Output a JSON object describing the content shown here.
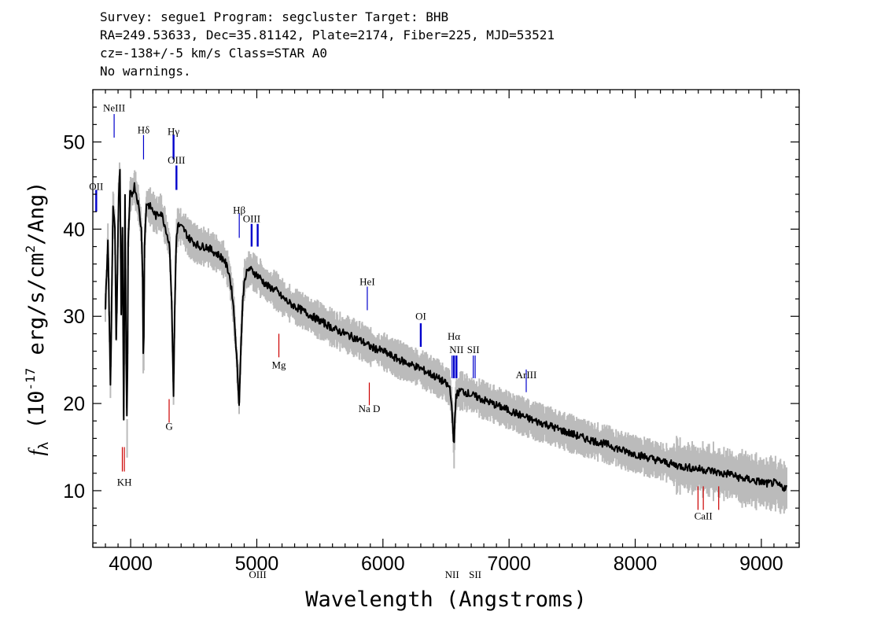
{
  "header": {
    "line1": "Survey: segue1 Program: segcluster Target: BHB",
    "line2": "RA=249.53633, Dec=35.81142, Plate=2174, Fiber=225, MJD=53521",
    "line3": "cz=-138+/-5 km/s Class=STAR A0",
    "line4": "No warnings."
  },
  "chart_data": {
    "type": "line",
    "xlabel": "Wavelength (Angstroms)",
    "ylabel": "f_λ (10^-17 erg/s/cm^2/Ang)",
    "xlim": [
      3700,
      9300
    ],
    "ylim": [
      3.5,
      56
    ],
    "xticks": [
      4000,
      5000,
      6000,
      7000,
      8000,
      9000
    ],
    "yticks": [
      10,
      20,
      30,
      40,
      50
    ],
    "grid": false,
    "colors": {
      "flux": "#000000",
      "error": "#bbbbbb",
      "emission": "#0000cc",
      "absorption": "#cc0000"
    },
    "series": [
      {
        "name": "flux",
        "points": [
          [
            3800,
            31
          ],
          [
            3820,
            39
          ],
          [
            3840,
            22
          ],
          [
            3860,
            43
          ],
          [
            3875,
            40
          ],
          [
            3885,
            27
          ],
          [
            3895,
            35
          ],
          [
            3905,
            44
          ],
          [
            3915,
            47
          ],
          [
            3925,
            30
          ],
          [
            3935,
            40
          ],
          [
            3945,
            18
          ],
          [
            3955,
            44
          ],
          [
            3965,
            24
          ],
          [
            3972,
            16
          ],
          [
            3980,
            38
          ],
          [
            3995,
            44
          ],
          [
            4010,
            44
          ],
          [
            4030,
            45
          ],
          [
            4060,
            43
          ],
          [
            4085,
            40
          ],
          [
            4095,
            35
          ],
          [
            4102,
            22
          ],
          [
            4110,
            38
          ],
          [
            4125,
            43
          ],
          [
            4160,
            42.5
          ],
          [
            4200,
            41.5
          ],
          [
            4240,
            42
          ],
          [
            4280,
            40
          ],
          [
            4310,
            38
          ],
          [
            4328,
            30
          ],
          [
            4340,
            21
          ],
          [
            4350,
            31
          ],
          [
            4362,
            39
          ],
          [
            4375,
            40.5
          ],
          [
            4420,
            40
          ],
          [
            4460,
            39
          ],
          [
            4500,
            38.5
          ],
          [
            4550,
            38
          ],
          [
            4600,
            38
          ],
          [
            4650,
            37.5
          ],
          [
            4700,
            37
          ],
          [
            4740,
            36.5
          ],
          [
            4780,
            35
          ],
          [
            4810,
            32
          ],
          [
            4830,
            28
          ],
          [
            4845,
            24
          ],
          [
            4861,
            20
          ],
          [
            4875,
            27
          ],
          [
            4890,
            32
          ],
          [
            4905,
            34.5
          ],
          [
            4940,
            35.5
          ],
          [
            4980,
            35
          ],
          [
            5020,
            34.5
          ],
          [
            5080,
            33.5
          ],
          [
            5150,
            33
          ],
          [
            5200,
            32.2
          ],
          [
            5260,
            31.5
          ],
          [
            5320,
            31
          ],
          [
            5380,
            30.5
          ],
          [
            5440,
            30
          ],
          [
            5500,
            29.5
          ],
          [
            5560,
            29
          ],
          [
            5620,
            28.5
          ],
          [
            5700,
            28
          ],
          [
            5780,
            27.5
          ],
          [
            5850,
            27
          ],
          [
            5900,
            26.5
          ],
          [
            6000,
            26
          ],
          [
            6100,
            25.2
          ],
          [
            6200,
            24.6
          ],
          [
            6300,
            24
          ],
          [
            6400,
            23.2
          ],
          [
            6480,
            22.5
          ],
          [
            6530,
            21.8
          ],
          [
            6550,
            19
          ],
          [
            6557,
            17
          ],
          [
            6563,
            14
          ],
          [
            6570,
            18
          ],
          [
            6580,
            21
          ],
          [
            6620,
            21.5
          ],
          [
            6700,
            21
          ],
          [
            6800,
            20.4
          ],
          [
            6900,
            19.8
          ],
          [
            7000,
            19.2
          ],
          [
            7100,
            18.6
          ],
          [
            7200,
            18
          ],
          [
            7300,
            17.6
          ],
          [
            7400,
            17
          ],
          [
            7500,
            16.5
          ],
          [
            7600,
            16
          ],
          [
            7700,
            15.6
          ],
          [
            7800,
            15.2
          ],
          [
            7900,
            14.6
          ],
          [
            8000,
            14.2
          ],
          [
            8100,
            13.8
          ],
          [
            8200,
            13.4
          ],
          [
            8300,
            13
          ],
          [
            8400,
            12.7
          ],
          [
            8500,
            12.5
          ],
          [
            8550,
            12.4
          ],
          [
            8600,
            12.3
          ],
          [
            8650,
            12.1
          ],
          [
            8700,
            11.9
          ],
          [
            8750,
            12
          ],
          [
            8800,
            11.6
          ],
          [
            8850,
            11.4
          ],
          [
            8900,
            11.3
          ],
          [
            8950,
            11.1
          ],
          [
            9000,
            11
          ],
          [
            9050,
            10.8
          ],
          [
            9100,
            10.9
          ],
          [
            9150,
            10.5
          ],
          [
            9200,
            10.3
          ]
        ]
      }
    ],
    "line_markers": [
      {
        "label": "OII",
        "wavelength": 3727,
        "kind": "emission",
        "label_y": 44.5,
        "from": 42,
        "to": 44.5,
        "width": 2.4
      },
      {
        "label": "NeIII",
        "wavelength": 3869,
        "kind": "emission",
        "label_y": 53.5,
        "from": 50.5,
        "to": 53.2,
        "width": 1.2
      },
      {
        "label": "Hδ",
        "wavelength": 4102,
        "kind": "emission",
        "label_y": 51,
        "from": 48,
        "to": 50.8,
        "width": 1.2
      },
      {
        "label": "Hγ",
        "wavelength": 4340,
        "kind": "emission",
        "label_y": 50.8,
        "from": 48,
        "to": 50.8,
        "width": 2.4
      },
      {
        "label": "OIII",
        "wavelength": 4363,
        "kind": "emission",
        "label_y": 47.5,
        "from": 44.5,
        "to": 47.3,
        "width": 2.4
      },
      {
        "label": "Hβ",
        "wavelength": 4861,
        "kind": "emission",
        "label_y": 41.8,
        "from": 39,
        "to": 41.8,
        "width": 1.2
      },
      {
        "label": "OIII",
        "wavelength": 4959,
        "kind": "emission",
        "label_y": 40.8,
        "from": 38,
        "to": 40.6,
        "width": 2.4
      },
      {
        "label": "OIII",
        "wavelength": 5007,
        "kind": "emission",
        "label_y": 0,
        "from": 38,
        "to": 40.6,
        "width": 2.4
      },
      {
        "label": "HeI",
        "wavelength": 5876,
        "kind": "emission",
        "label_y": 33.6,
        "from": 30.7,
        "to": 33.4,
        "width": 1.2
      },
      {
        "label": "OI",
        "wavelength": 6300,
        "kind": "emission",
        "label_y": 29.6,
        "from": 26.5,
        "to": 29.2,
        "width": 2.4
      },
      {
        "label": "NII",
        "wavelength": 6548,
        "kind": "emission",
        "label_y": 0,
        "from": 22.9,
        "to": 25.5,
        "width": 1.2
      },
      {
        "label": "Hα",
        "wavelength": 6563,
        "kind": "emission",
        "label_y": 27.3,
        "from": 22.9,
        "to": 25.5,
        "width": 2.4
      },
      {
        "label": "NII",
        "wavelength": 6583,
        "kind": "emission",
        "label_y": 25.8,
        "from": 22.9,
        "to": 25.5,
        "width": 2.4
      },
      {
        "label": "SII",
        "wavelength": 6716,
        "kind": "emission",
        "label_y": 25.8,
        "from": 22.9,
        "to": 25.5,
        "width": 1.2
      },
      {
        "label": "SII",
        "wavelength": 6731,
        "kind": "emission",
        "label_y": 0,
        "from": 22.9,
        "to": 25.5,
        "width": 1.2
      },
      {
        "label": "ArIII",
        "wavelength": 7136,
        "kind": "emission",
        "label_y": 22.9,
        "from": 21.3,
        "to": 23.9,
        "width": 1.2
      },
      {
        "label": "Mg",
        "wavelength": 5175,
        "kind": "absorption",
        "label_y": 24.0,
        "from": 25.3,
        "to": 28,
        "width": 1.2
      },
      {
        "label": "G",
        "wavelength": 4305,
        "kind": "absorption",
        "label_y": 17.0,
        "from": 17.8,
        "to": 20.5,
        "width": 1.2
      },
      {
        "label": "Na D",
        "wavelength": 5892,
        "kind": "absorption",
        "label_y": 19.0,
        "from": 19.8,
        "to": 22.4,
        "width": 1.2
      },
      {
        "label": "KH",
        "wavelength": 3950,
        "kind": "absorption",
        "label_y": 10.6,
        "from": 12.2,
        "to": 15,
        "width": 1.2
      },
      {
        "label": "",
        "wavelength": 3934,
        "kind": "absorption",
        "label_y": 0,
        "from": 12.2,
        "to": 15,
        "width": 1.2
      },
      {
        "label": "CaII",
        "wavelength": 8540,
        "kind": "absorption",
        "label_y": 6.7,
        "from": 7.8,
        "to": 10.5,
        "width": 1.2
      },
      {
        "label": "",
        "wavelength": 8498,
        "kind": "absorption",
        "label_y": 0,
        "from": 7.8,
        "to": 10.5,
        "width": 1.2
      },
      {
        "label": "",
        "wavelength": 8662,
        "kind": "absorption",
        "label_y": 0,
        "from": 7.8,
        "to": 10.5,
        "width": 1.2
      }
    ]
  }
}
